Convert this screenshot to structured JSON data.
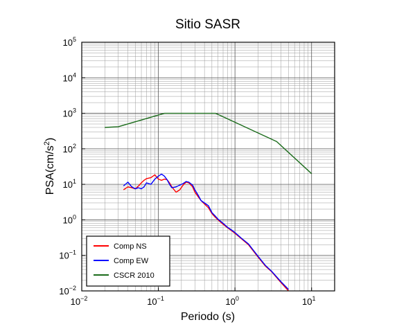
{
  "chart_data": {
    "type": "line",
    "title": "Sitio SASR",
    "xlabel": "Periodo (s)",
    "ylabel": {
      "base": "PSA(cm/s",
      "sup": "2",
      "close": ")"
    },
    "x_scale": "log",
    "y_scale": "log",
    "xlim": [
      0.01,
      20
    ],
    "ylim": [
      0.01,
      100000
    ],
    "x_ticks": [
      {
        "value": 0.01,
        "base": "10",
        "exp": "−2"
      },
      {
        "value": 0.1,
        "base": "10",
        "exp": "−1"
      },
      {
        "value": 1,
        "base": "10",
        "exp": "0"
      },
      {
        "value": 10,
        "base": "10",
        "exp": "1"
      }
    ],
    "y_ticks": [
      {
        "value": 0.01,
        "base": "10",
        "exp": "−2"
      },
      {
        "value": 0.1,
        "base": "10",
        "exp": "−1"
      },
      {
        "value": 1,
        "base": "10",
        "exp": "0"
      },
      {
        "value": 10,
        "base": "10",
        "exp": "1"
      },
      {
        "value": 100,
        "base": "10",
        "exp": "2"
      },
      {
        "value": 1000,
        "base": "10",
        "exp": "3"
      },
      {
        "value": 10000,
        "base": "10",
        "exp": "4"
      },
      {
        "value": 100000,
        "base": "10",
        "exp": "5"
      }
    ],
    "grid": true,
    "legend_position": "bottom-left",
    "series": [
      {
        "name": "Comp NS",
        "color": "#ff0000",
        "x": [
          0.035,
          0.04,
          0.045,
          0.05,
          0.055,
          0.06,
          0.065,
          0.07,
          0.08,
          0.09,
          0.1,
          0.11,
          0.12,
          0.13,
          0.14,
          0.15,
          0.17,
          0.19,
          0.21,
          0.23,
          0.25,
          0.28,
          0.3,
          0.33,
          0.36,
          0.4,
          0.45,
          0.5,
          0.55,
          0.6,
          0.7,
          0.8,
          0.9,
          1.0,
          1.2,
          1.5,
          2.0,
          2.5,
          3.0,
          4.0,
          5.0
        ],
        "y": [
          7.0,
          8.5,
          8.0,
          7.5,
          9.0,
          11.0,
          13.0,
          14.5,
          15.5,
          18.5,
          14.0,
          13.0,
          14.0,
          13.5,
          11.0,
          8.5,
          6.0,
          7.0,
          9.5,
          11.5,
          11.0,
          8.5,
          6.0,
          4.5,
          3.5,
          2.8,
          2.2,
          1.5,
          1.2,
          1.0,
          0.75,
          0.6,
          0.5,
          0.42,
          0.3,
          0.2,
          0.09,
          0.05,
          0.035,
          0.017,
          0.01
        ]
      },
      {
        "name": "Comp EW",
        "color": "#0000ff",
        "x": [
          0.035,
          0.04,
          0.045,
          0.05,
          0.055,
          0.06,
          0.065,
          0.07,
          0.08,
          0.09,
          0.1,
          0.11,
          0.12,
          0.13,
          0.14,
          0.15,
          0.17,
          0.19,
          0.21,
          0.23,
          0.25,
          0.28,
          0.3,
          0.33,
          0.36,
          0.4,
          0.45,
          0.5,
          0.55,
          0.6,
          0.7,
          0.8,
          0.9,
          1.0,
          1.2,
          1.5,
          2.0,
          2.5,
          3.0,
          4.0,
          5.0
        ],
        "y": [
          9.0,
          11.5,
          8.5,
          7.5,
          8.0,
          7.5,
          8.5,
          11.0,
          10.0,
          14.0,
          17.0,
          19.5,
          17.0,
          13.5,
          10.0,
          8.0,
          8.5,
          9.5,
          10.5,
          12.0,
          11.5,
          9.5,
          7.0,
          5.0,
          3.5,
          3.0,
          2.5,
          1.6,
          1.3,
          1.05,
          0.8,
          0.62,
          0.52,
          0.44,
          0.31,
          0.21,
          0.095,
          0.052,
          0.036,
          0.018,
          0.011
        ]
      },
      {
        "name": "CSCR 2010",
        "color": "#1a6b1a",
        "x": [
          0.02,
          0.03,
          0.12,
          0.56,
          3.5,
          10
        ],
        "y": [
          400,
          420,
          1000,
          1000,
          160,
          20
        ]
      }
    ]
  }
}
